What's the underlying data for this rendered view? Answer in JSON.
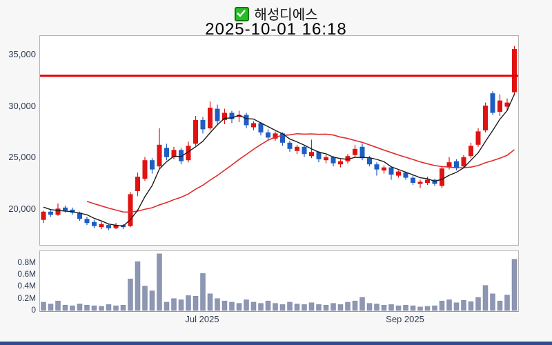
{
  "window": {
    "background": "#f7f7f7",
    "bottom_bar_color": "#2e4d8e"
  },
  "header": {
    "checkbox_icon": "checked-green-checkbox",
    "stock_name": "해성디에스",
    "datetime": "2025-10-01 16:18"
  },
  "chart_data": {
    "type": "candlestick_with_volume",
    "title": "해성디에스",
    "timestamp": "2025-10-01 16:18",
    "grid": "off",
    "legend": "none",
    "price_axis": {
      "tick_labels": [
        "35,000",
        "30,000",
        "25,000",
        "20,000"
      ],
      "tick_values": [
        35000,
        30000,
        25000,
        20000
      ],
      "range": [
        16550,
        36900
      ]
    },
    "volume_axis": {
      "tick_labels": [
        "0.8M",
        "0.6M",
        "0.4M",
        "0.2M",
        "0"
      ],
      "tick_values_millions": [
        0.8,
        0.6,
        0.4,
        0.2,
        0
      ],
      "range_millions": [
        0,
        1.0
      ]
    },
    "x_axis": {
      "labels": [
        {
          "text": "Jul 2025",
          "candle_index": 22
        },
        {
          "text": "Sep 2025",
          "candle_index": 50
        }
      ]
    },
    "horizontal_price_line": {
      "value": 33000,
      "color": "#e60000"
    },
    "styles": {
      "up_color": "#e01212",
      "down_color": "#1d5dc4",
      "ma_short_color": "#1a1a1a",
      "ma_long_color": "#e02b2b",
      "volume_color": "#8d96b2"
    },
    "moving_averages": [
      {
        "name": "short",
        "period": 5
      },
      {
        "name": "long",
        "period": 20
      }
    ],
    "ma_context_closes": [
      23000,
      22800,
      22500,
      22200,
      22000,
      21700,
      21400,
      21200,
      21000,
      20700,
      20500,
      20200,
      20000
    ],
    "candles_ohlc": [
      [
        19000,
        19900,
        18700,
        19800
      ],
      [
        19800,
        20000,
        19300,
        19500
      ],
      [
        19500,
        20600,
        19400,
        20100
      ],
      [
        20200,
        20400,
        19700,
        19900
      ],
      [
        20000,
        20200,
        19500,
        19700
      ],
      [
        19700,
        19800,
        18900,
        19100
      ],
      [
        19100,
        19300,
        18500,
        18700
      ],
      [
        18800,
        19000,
        18200,
        18400
      ],
      [
        18300,
        18800,
        18100,
        18600
      ],
      [
        18500,
        18600,
        18000,
        18200
      ],
      [
        18200,
        18700,
        18100,
        18500
      ],
      [
        18500,
        18600,
        18100,
        18300
      ],
      [
        18400,
        21700,
        18300,
        21500
      ],
      [
        21800,
        23600,
        21300,
        23200
      ],
      [
        23000,
        25100,
        22800,
        24800
      ],
      [
        24800,
        25000,
        23500,
        23900
      ],
      [
        24200,
        27900,
        24000,
        26300
      ],
      [
        26000,
        26400,
        24800,
        25100
      ],
      [
        25100,
        26100,
        24900,
        25800
      ],
      [
        25800,
        26000,
        24400,
        24700
      ],
      [
        24800,
        26600,
        24600,
        26200
      ],
      [
        26400,
        29100,
        26200,
        28700
      ],
      [
        28700,
        29000,
        27400,
        27800
      ],
      [
        27900,
        30500,
        27700,
        29900
      ],
      [
        29800,
        30200,
        28300,
        28600
      ],
      [
        28700,
        29800,
        28300,
        29400
      ],
      [
        29400,
        29600,
        28400,
        28800
      ],
      [
        29000,
        29600,
        28500,
        29200
      ],
      [
        29200,
        29400,
        27900,
        28200
      ],
      [
        28000,
        28600,
        27700,
        28400
      ],
      [
        28400,
        28500,
        27200,
        27500
      ],
      [
        27500,
        27800,
        26800,
        27000
      ],
      [
        26900,
        27600,
        26700,
        27400
      ],
      [
        27400,
        27500,
        26200,
        26500
      ],
      [
        26500,
        26700,
        25600,
        25900
      ],
      [
        25700,
        26300,
        25400,
        26100
      ],
      [
        26100,
        26200,
        25100,
        25400
      ],
      [
        25200,
        26800,
        25000,
        25600
      ],
      [
        25600,
        25700,
        24600,
        24900
      ],
      [
        24800,
        25300,
        24500,
        25100
      ],
      [
        25100,
        25200,
        24200,
        24500
      ],
      [
        24400,
        24900,
        24100,
        24700
      ],
      [
        24700,
        25400,
        24500,
        25200
      ],
      [
        25300,
        26300,
        25100,
        25900
      ],
      [
        26100,
        26400,
        24800,
        25000
      ],
      [
        25000,
        25200,
        24200,
        24400
      ],
      [
        24400,
        24600,
        23300,
        23900
      ],
      [
        23800,
        24300,
        23500,
        24100
      ],
      [
        24100,
        24200,
        22900,
        23400
      ],
      [
        23300,
        23800,
        23100,
        23700
      ],
      [
        23600,
        23700,
        22900,
        23100
      ],
      [
        23100,
        23400,
        22400,
        22600
      ],
      [
        22500,
        22900,
        22100,
        22700
      ],
      [
        22600,
        23200,
        22400,
        22900
      ],
      [
        22900,
        23000,
        22300,
        22500
      ],
      [
        22300,
        24200,
        22100,
        24000
      ],
      [
        24100,
        25100,
        23900,
        24600
      ],
      [
        24700,
        24900,
        23800,
        24100
      ],
      [
        24200,
        25300,
        24000,
        25100
      ],
      [
        25200,
        26500,
        25000,
        26200
      ],
      [
        26300,
        27900,
        26100,
        27600
      ],
      [
        27700,
        30400,
        27500,
        30100
      ],
      [
        31300,
        31500,
        29200,
        29400
      ],
      [
        29500,
        31200,
        29100,
        30600
      ],
      [
        30000,
        30800,
        29600,
        30400
      ],
      [
        31400,
        35900,
        31100,
        35600
      ]
    ],
    "volumes_millions": [
      0.14,
      0.11,
      0.16,
      0.09,
      0.08,
      0.11,
      0.09,
      0.08,
      0.07,
      0.1,
      0.08,
      0.09,
      0.53,
      0.82,
      0.41,
      0.33,
      0.95,
      0.14,
      0.2,
      0.18,
      0.25,
      0.24,
      0.62,
      0.28,
      0.2,
      0.16,
      0.14,
      0.12,
      0.18,
      0.14,
      0.12,
      0.16,
      0.12,
      0.1,
      0.14,
      0.11,
      0.1,
      0.13,
      0.1,
      0.09,
      0.12,
      0.1,
      0.14,
      0.16,
      0.22,
      0.12,
      0.11,
      0.09,
      0.1,
      0.08,
      0.09,
      0.08,
      0.06,
      0.07,
      0.08,
      0.16,
      0.18,
      0.13,
      0.17,
      0.15,
      0.22,
      0.42,
      0.28,
      0.16,
      0.26,
      0.86
    ]
  }
}
